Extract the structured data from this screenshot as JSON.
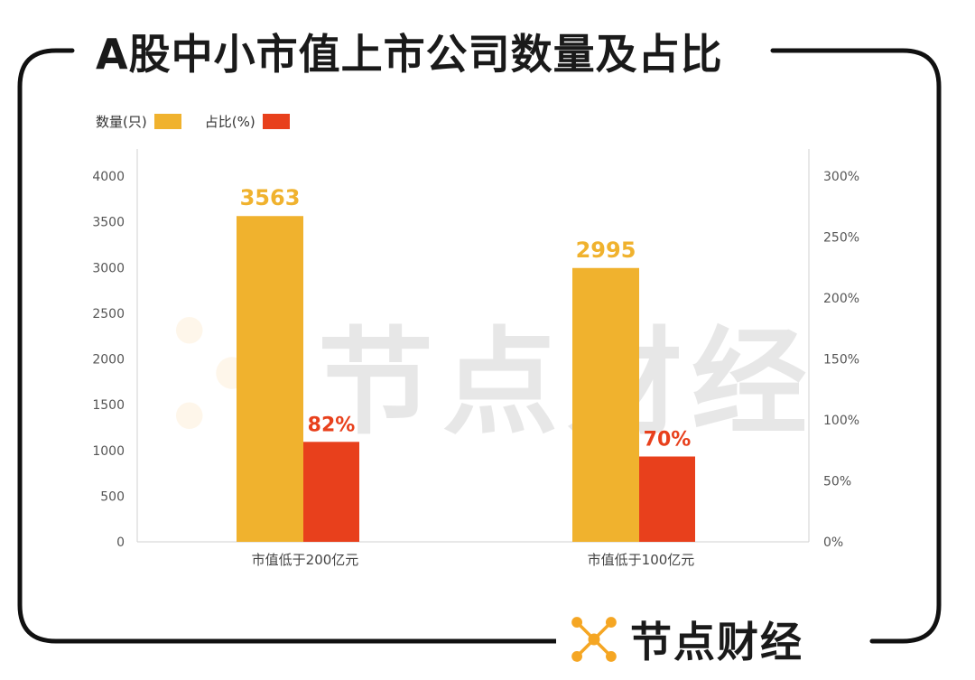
{
  "title": "A股中小市值上市公司数量及占比",
  "brand": {
    "name": "节点财经",
    "logo_icon": "node-logo-icon",
    "accent_color": "#F5A623"
  },
  "watermark": {
    "text": "节点财经"
  },
  "chart_data": {
    "type": "bar",
    "categories": [
      "市值低于200亿元",
      "市值低于100亿元"
    ],
    "series": [
      {
        "name": "数量(只)",
        "values": [
          3563,
          2995
        ],
        "axis": "left",
        "color": "#F0B22E",
        "labels": [
          "3563",
          "2995"
        ]
      },
      {
        "name": "占比(%)",
        "values": [
          82,
          70
        ],
        "axis": "right",
        "color": "#E8401C",
        "labels": [
          "82%",
          "70%"
        ]
      }
    ],
    "y_left": {
      "min": 0,
      "max": 4000,
      "ticks": [
        "0",
        "500",
        "1000",
        "1500",
        "2000",
        "2500",
        "3000",
        "3500",
        "4000"
      ]
    },
    "y_right": {
      "min": 0,
      "max": 300,
      "ticks": [
        "0%",
        "50%",
        "100%",
        "150%",
        "200%",
        "250%",
        "300%"
      ]
    },
    "legend_position": "top-left",
    "grid": false
  }
}
